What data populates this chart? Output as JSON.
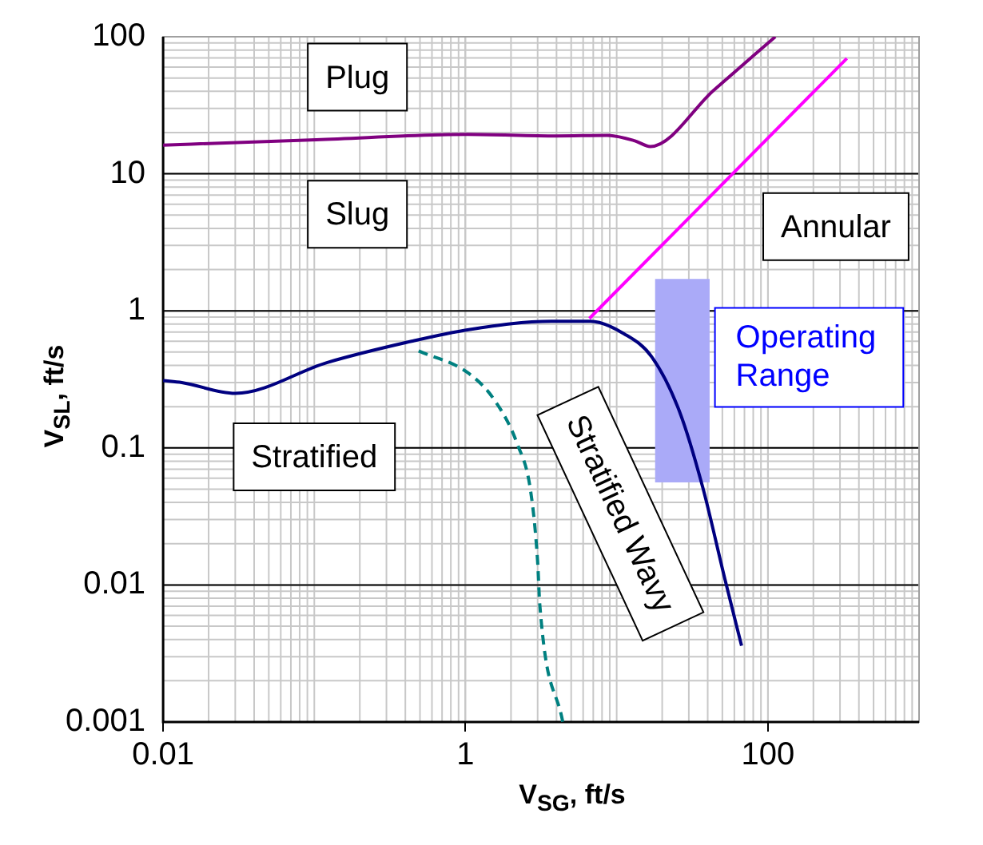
{
  "chart_data": {
    "type": "line",
    "xlabel": "V$_{SG}$, ft/s",
    "ylabel": "V$_{SL}$, ft/s",
    "log": "xy",
    "xlim": [
      0.01,
      1000
    ],
    "ylim": [
      0.001,
      100
    ],
    "xticks": [
      0.01,
      1,
      100
    ],
    "yticks": [
      0.001,
      0.01,
      0.1,
      1,
      10,
      100
    ],
    "grid": true,
    "legend": false,
    "marker": "none",
    "series": [
      {
        "color": "#800080",
        "x": [
          0.01,
          0.103,
          1.03,
          4.0,
          8.6,
          13.2,
          16.7,
          43.7,
          112
        ],
        "values": [
          16.2,
          17.7,
          19.4,
          18.9,
          19.1,
          17.4,
          15.8,
          40.6,
          100
        ]
      },
      {
        "color": "#ff00ff",
        "x": [
          6.6,
          333
        ],
        "values": [
          0.88,
          69.5
        ]
      },
      {
        "color": "#000080",
        "x": [
          0.01,
          0.0133,
          0.03,
          0.122,
          0.44,
          1.05,
          3.7,
          6.7,
          11.2,
          17.1,
          26,
          37,
          52,
          67
        ],
        "values": [
          0.31,
          0.3,
          0.25,
          0.42,
          0.6,
          0.73,
          0.84,
          0.84,
          0.68,
          0.46,
          0.185,
          0.052,
          0.011,
          0.0036
        ]
      },
      {
        "color": "#008080",
        "line_style": "dashed",
        "x": [
          0.49,
          1.05,
          1.57,
          2.2,
          2.7,
          3.0,
          3.1,
          4.4
        ],
        "values": [
          0.51,
          0.35,
          0.22,
          0.107,
          0.048,
          0.0148,
          0.0072,
          0.001
        ]
      },
      {
        "type": "area",
        "color": "#aaaaf8",
        "x": [
          17.9,
          41.2
        ],
        "values": [
          null,
          null
        ],
        "lower": [
          0.056,
          0.056
        ],
        "upper": [
          1.71,
          1.71
        ]
      }
    ],
    "annotations": [
      "Plug",
      "Slug",
      "Annular",
      "Stratified",
      "Stratified Wavy",
      "Operating Range"
    ]
  }
}
